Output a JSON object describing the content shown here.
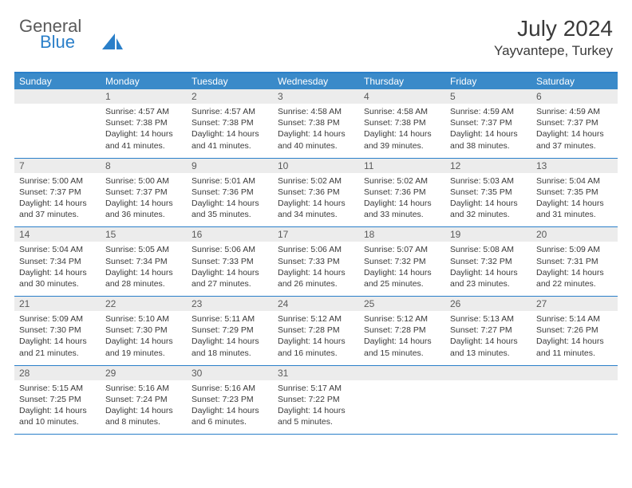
{
  "logo": {
    "word1": "General",
    "word2": "Blue",
    "sail_color": "#2a7fc9",
    "text_color": "#5a5a5a"
  },
  "title": "July 2024",
  "location": "Yayvantepe, Turkey",
  "colors": {
    "header_bar": "#3a8ac9",
    "border": "#2a7fc9",
    "daynum_bg": "#ececec",
    "text": "#3a3a3a",
    "header_text": "#ffffff"
  },
  "fonts": {
    "title_size": 28,
    "location_size": 17,
    "dayheader_size": 12,
    "daynum_size": 12,
    "body_size": 10.5
  },
  "dayNames": [
    "Sunday",
    "Monday",
    "Tuesday",
    "Wednesday",
    "Thursday",
    "Friday",
    "Saturday"
  ],
  "weeks": [
    [
      {
        "n": "",
        "sr": "",
        "ss": "",
        "dl": ""
      },
      {
        "n": "1",
        "sr": "4:57 AM",
        "ss": "7:38 PM",
        "dl": "14 hours and 41 minutes."
      },
      {
        "n": "2",
        "sr": "4:57 AM",
        "ss": "7:38 PM",
        "dl": "14 hours and 41 minutes."
      },
      {
        "n": "3",
        "sr": "4:58 AM",
        "ss": "7:38 PM",
        "dl": "14 hours and 40 minutes."
      },
      {
        "n": "4",
        "sr": "4:58 AM",
        "ss": "7:38 PM",
        "dl": "14 hours and 39 minutes."
      },
      {
        "n": "5",
        "sr": "4:59 AM",
        "ss": "7:37 PM",
        "dl": "14 hours and 38 minutes."
      },
      {
        "n": "6",
        "sr": "4:59 AM",
        "ss": "7:37 PM",
        "dl": "14 hours and 37 minutes."
      }
    ],
    [
      {
        "n": "7",
        "sr": "5:00 AM",
        "ss": "7:37 PM",
        "dl": "14 hours and 37 minutes."
      },
      {
        "n": "8",
        "sr": "5:00 AM",
        "ss": "7:37 PM",
        "dl": "14 hours and 36 minutes."
      },
      {
        "n": "9",
        "sr": "5:01 AM",
        "ss": "7:36 PM",
        "dl": "14 hours and 35 minutes."
      },
      {
        "n": "10",
        "sr": "5:02 AM",
        "ss": "7:36 PM",
        "dl": "14 hours and 34 minutes."
      },
      {
        "n": "11",
        "sr": "5:02 AM",
        "ss": "7:36 PM",
        "dl": "14 hours and 33 minutes."
      },
      {
        "n": "12",
        "sr": "5:03 AM",
        "ss": "7:35 PM",
        "dl": "14 hours and 32 minutes."
      },
      {
        "n": "13",
        "sr": "5:04 AM",
        "ss": "7:35 PM",
        "dl": "14 hours and 31 minutes."
      }
    ],
    [
      {
        "n": "14",
        "sr": "5:04 AM",
        "ss": "7:34 PM",
        "dl": "14 hours and 30 minutes."
      },
      {
        "n": "15",
        "sr": "5:05 AM",
        "ss": "7:34 PM",
        "dl": "14 hours and 28 minutes."
      },
      {
        "n": "16",
        "sr": "5:06 AM",
        "ss": "7:33 PM",
        "dl": "14 hours and 27 minutes."
      },
      {
        "n": "17",
        "sr": "5:06 AM",
        "ss": "7:33 PM",
        "dl": "14 hours and 26 minutes."
      },
      {
        "n": "18",
        "sr": "5:07 AM",
        "ss": "7:32 PM",
        "dl": "14 hours and 25 minutes."
      },
      {
        "n": "19",
        "sr": "5:08 AM",
        "ss": "7:32 PM",
        "dl": "14 hours and 23 minutes."
      },
      {
        "n": "20",
        "sr": "5:09 AM",
        "ss": "7:31 PM",
        "dl": "14 hours and 22 minutes."
      }
    ],
    [
      {
        "n": "21",
        "sr": "5:09 AM",
        "ss": "7:30 PM",
        "dl": "14 hours and 21 minutes."
      },
      {
        "n": "22",
        "sr": "5:10 AM",
        "ss": "7:30 PM",
        "dl": "14 hours and 19 minutes."
      },
      {
        "n": "23",
        "sr": "5:11 AM",
        "ss": "7:29 PM",
        "dl": "14 hours and 18 minutes."
      },
      {
        "n": "24",
        "sr": "5:12 AM",
        "ss": "7:28 PM",
        "dl": "14 hours and 16 minutes."
      },
      {
        "n": "25",
        "sr": "5:12 AM",
        "ss": "7:28 PM",
        "dl": "14 hours and 15 minutes."
      },
      {
        "n": "26",
        "sr": "5:13 AM",
        "ss": "7:27 PM",
        "dl": "14 hours and 13 minutes."
      },
      {
        "n": "27",
        "sr": "5:14 AM",
        "ss": "7:26 PM",
        "dl": "14 hours and 11 minutes."
      }
    ],
    [
      {
        "n": "28",
        "sr": "5:15 AM",
        "ss": "7:25 PM",
        "dl": "14 hours and 10 minutes."
      },
      {
        "n": "29",
        "sr": "5:16 AM",
        "ss": "7:24 PM",
        "dl": "14 hours and 8 minutes."
      },
      {
        "n": "30",
        "sr": "5:16 AM",
        "ss": "7:23 PM",
        "dl": "14 hours and 6 minutes."
      },
      {
        "n": "31",
        "sr": "5:17 AM",
        "ss": "7:22 PM",
        "dl": "14 hours and 5 minutes."
      },
      {
        "n": "",
        "sr": "",
        "ss": "",
        "dl": ""
      },
      {
        "n": "",
        "sr": "",
        "ss": "",
        "dl": ""
      },
      {
        "n": "",
        "sr": "",
        "ss": "",
        "dl": ""
      }
    ]
  ],
  "labels": {
    "sunrise": "Sunrise:",
    "sunset": "Sunset:",
    "daylight": "Daylight:"
  }
}
